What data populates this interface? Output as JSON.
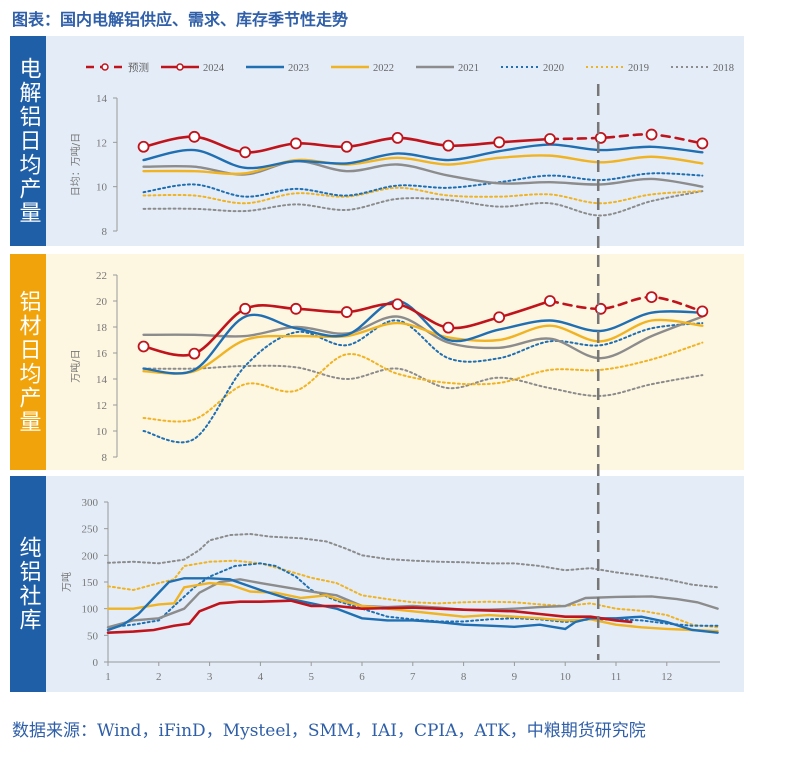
{
  "title": "图表：国内电解铝供应、需求、库存季节性走势",
  "footer": "数据来源：Wind，iFinD，Mysteel，SMM，IAI，CPIA，ATK，中粮期货研究院",
  "colors": {
    "red": "#c0141c",
    "blue": "#1f6fb2",
    "yellow": "#f0b323",
    "gray": "#8c8c8c",
    "panel_blue": "#e4edf7",
    "panel_cream": "#fdf6e1",
    "side_blue": "#1f5fa8",
    "side_orange": "#f0a30a"
  },
  "legend": [
    {
      "name": "预测",
      "color": "#c0141c",
      "style": "dashed-marker"
    },
    {
      "name": "2024",
      "color": "#c0141c",
      "style": "solid-marker"
    },
    {
      "name": "2023",
      "color": "#1f6fb2",
      "style": "solid"
    },
    {
      "name": "2022",
      "color": "#f0b323",
      "style": "solid"
    },
    {
      "name": "2021",
      "color": "#8c8c8c",
      "style": "solid"
    },
    {
      "name": "2020",
      "color": "#1f6fb2",
      "style": "dotted"
    },
    {
      "name": "2019",
      "color": "#f0b323",
      "style": "dotted"
    },
    {
      "name": "2018",
      "color": "#8c8c8c",
      "style": "dotted"
    }
  ],
  "forecast_divider_month": 10.65,
  "chart_data": [
    {
      "panel_label": "电解铝日均产量",
      "type": "line",
      "ylabel": "日均：万吨/日",
      "ylim": [
        8,
        14
      ],
      "yticks": [
        8,
        10,
        12,
        14
      ],
      "x": [
        1.7,
        2.7,
        3.7,
        4.7,
        5.7,
        6.7,
        7.7,
        8.7,
        9.7,
        10.7,
        11.7,
        12.7
      ],
      "series": [
        {
          "name": "2024",
          "values": [
            11.8,
            12.25,
            11.55,
            11.95,
            11.8,
            12.2,
            11.85,
            12.0,
            12.15,
            null,
            null,
            null
          ]
        },
        {
          "name": "预测",
          "values": [
            null,
            null,
            null,
            null,
            null,
            null,
            null,
            null,
            12.15,
            12.2,
            12.35,
            11.95
          ]
        },
        {
          "name": "2023",
          "values": [
            11.2,
            11.65,
            10.85,
            11.15,
            11.05,
            11.5,
            11.2,
            11.6,
            11.9,
            11.65,
            11.8,
            11.55
          ]
        },
        {
          "name": "2022",
          "values": [
            10.7,
            10.7,
            10.6,
            11.2,
            11.0,
            11.3,
            11.0,
            11.3,
            11.4,
            11.1,
            11.35,
            11.05
          ]
        },
        {
          "name": "2021",
          "values": [
            10.9,
            10.9,
            10.55,
            11.15,
            10.7,
            11.0,
            10.5,
            10.15,
            10.2,
            10.1,
            10.35,
            10.0
          ]
        },
        {
          "name": "2020",
          "values": [
            9.75,
            10.1,
            9.55,
            9.9,
            9.6,
            10.05,
            9.95,
            10.2,
            10.5,
            10.3,
            10.6,
            10.5
          ]
        },
        {
          "name": "2019",
          "values": [
            9.6,
            9.6,
            9.25,
            9.7,
            9.55,
            9.95,
            9.6,
            9.55,
            9.65,
            9.25,
            9.65,
            9.8
          ]
        },
        {
          "name": "2018",
          "values": [
            9.0,
            9.0,
            8.9,
            9.2,
            8.95,
            9.45,
            9.4,
            9.1,
            9.25,
            8.7,
            9.35,
            9.8
          ]
        }
      ]
    },
    {
      "panel_label": "铝材日均产量",
      "type": "line",
      "ylabel": "万吨/日",
      "ylim": [
        8,
        22
      ],
      "yticks": [
        8,
        10,
        12,
        14,
        16,
        18,
        20,
        22
      ],
      "x": [
        1.7,
        2.7,
        3.7,
        4.7,
        5.7,
        6.7,
        7.7,
        8.7,
        9.7,
        10.7,
        11.7,
        12.7
      ],
      "series": [
        {
          "name": "2024",
          "values": [
            16.5,
            15.95,
            19.4,
            19.4,
            19.15,
            19.75,
            17.95,
            18.75,
            20.0,
            null,
            null,
            null
          ]
        },
        {
          "name": "预测",
          "values": [
            null,
            null,
            null,
            null,
            null,
            null,
            null,
            null,
            20.0,
            19.4,
            20.3,
            19.2
          ]
        },
        {
          "name": "2023",
          "values": [
            14.8,
            14.7,
            18.8,
            17.9,
            17.4,
            20.0,
            17.0,
            17.8,
            18.5,
            17.7,
            19.1,
            19.1
          ]
        },
        {
          "name": "2022",
          "values": [
            14.6,
            14.6,
            17.0,
            17.3,
            17.3,
            18.3,
            17.2,
            17.0,
            18.1,
            16.9,
            18.5,
            18.1
          ]
        },
        {
          "name": "2021",
          "values": [
            17.4,
            17.4,
            17.3,
            18.0,
            17.5,
            18.8,
            16.8,
            16.4,
            17.1,
            15.6,
            17.3,
            18.8
          ]
        },
        {
          "name": "2020",
          "values": [
            10.0,
            9.4,
            15.0,
            17.6,
            16.6,
            18.5,
            15.6,
            15.6,
            16.9,
            16.6,
            17.9,
            18.3
          ]
        },
        {
          "name": "2019",
          "values": [
            11.0,
            10.9,
            13.6,
            13.1,
            15.9,
            14.4,
            13.7,
            13.7,
            14.7,
            14.7,
            15.5,
            16.8
          ]
        },
        {
          "name": "2018",
          "values": [
            14.8,
            14.8,
            15.0,
            14.9,
            14.0,
            14.8,
            13.3,
            14.1,
            13.3,
            12.7,
            13.6,
            14.3
          ]
        }
      ]
    },
    {
      "panel_label": "纯铝社库",
      "type": "line",
      "ylabel": "万吨",
      "ylim": [
        0,
        300
      ],
      "yticks": [
        0,
        50,
        100,
        150,
        200,
        250,
        300
      ],
      "xlim": [
        1,
        13
      ],
      "xticks": [
        1,
        2,
        3,
        4,
        5,
        6,
        7,
        8,
        9,
        10,
        11,
        12
      ],
      "series": [
        {
          "name": "2024",
          "points": [
            [
              1,
              55
            ],
            [
              1.5,
              57
            ],
            [
              1.9,
              60
            ],
            [
              2.3,
              68
            ],
            [
              2.6,
              72
            ],
            [
              2.8,
              95
            ],
            [
              3.2,
              110
            ],
            [
              3.6,
              113
            ],
            [
              4,
              113
            ],
            [
              4.6,
              115
            ],
            [
              5,
              105
            ],
            [
              5.5,
              105
            ],
            [
              6,
              100
            ],
            [
              7,
              102
            ],
            [
              7.5,
              100
            ],
            [
              8,
              98
            ],
            [
              9,
              95
            ],
            [
              9.5,
              90
            ],
            [
              10,
              85
            ],
            [
              10.5,
              85
            ],
            [
              11,
              78
            ],
            [
              11.3,
              75
            ]
          ]
        },
        {
          "name": "2023",
          "points": [
            [
              1,
              60
            ],
            [
              1.3,
              70
            ],
            [
              1.6,
              90
            ],
            [
              1.9,
              120
            ],
            [
              2.2,
              150
            ],
            [
              2.5,
              157
            ],
            [
              3,
              157
            ],
            [
              3.4,
              155
            ],
            [
              4,
              135
            ],
            [
              4.5,
              120
            ],
            [
              5,
              110
            ],
            [
              5.5,
              100
            ],
            [
              6,
              82
            ],
            [
              6.5,
              78
            ],
            [
              7,
              78
            ],
            [
              7.5,
              75
            ],
            [
              8,
              70
            ],
            [
              8.5,
              68
            ],
            [
              9,
              66
            ],
            [
              9.5,
              70
            ],
            [
              10,
              62
            ],
            [
              10.2,
              75
            ],
            [
              10.5,
              82
            ],
            [
              11,
              82
            ],
            [
              11.5,
              85
            ],
            [
              12,
              75
            ],
            [
              12.5,
              60
            ],
            [
              13,
              55
            ]
          ]
        },
        {
          "name": "2022",
          "points": [
            [
              1,
              100
            ],
            [
              1.5,
              100
            ],
            [
              2,
              108
            ],
            [
              2.3,
              110
            ],
            [
              2.5,
              140
            ],
            [
              3,
              148
            ],
            [
              3.4,
              145
            ],
            [
              3.8,
              132
            ],
            [
              4.3,
              130
            ],
            [
              4.8,
              120
            ],
            [
              5.3,
              125
            ],
            [
              5.6,
              115
            ],
            [
              6,
              105
            ],
            [
              6.5,
              100
            ],
            [
              7,
              95
            ],
            [
              7.5,
              90
            ],
            [
              8,
              85
            ],
            [
              8.5,
              88
            ],
            [
              9,
              85
            ],
            [
              9.5,
              82
            ],
            [
              10,
              78
            ],
            [
              10.5,
              80
            ],
            [
              11,
              70
            ],
            [
              11.5,
              65
            ],
            [
              12,
              62
            ],
            [
              12.5,
              60
            ],
            [
              13,
              58
            ]
          ]
        },
        {
          "name": "2021",
          "points": [
            [
              1,
              65
            ],
            [
              1.5,
              78
            ],
            [
              2,
              82
            ],
            [
              2.5,
              100
            ],
            [
              2.8,
              130
            ],
            [
              3.2,
              150
            ],
            [
              3.6,
              155
            ],
            [
              4,
              148
            ],
            [
              4.5,
              140
            ],
            [
              5,
              132
            ],
            [
              5.5,
              125
            ],
            [
              6,
              105
            ],
            [
              6.5,
              103
            ],
            [
              7,
              105
            ],
            [
              7.5,
              102
            ],
            [
              8,
              98
            ],
            [
              8.5,
              98
            ],
            [
              9,
              100
            ],
            [
              9.5,
              103
            ],
            [
              10,
              105
            ],
            [
              10.4,
              120
            ],
            [
              11,
              122
            ],
            [
              11.7,
              123
            ],
            [
              12.2,
              118
            ],
            [
              12.6,
              112
            ],
            [
              13,
              100
            ]
          ]
        },
        {
          "name": "2020",
          "points": [
            [
              1,
              65
            ],
            [
              1.5,
              70
            ],
            [
              2,
              78
            ],
            [
              2.3,
              105
            ],
            [
              2.7,
              140
            ],
            [
              3,
              160
            ],
            [
              3.5,
              180
            ],
            [
              4,
              185
            ],
            [
              4.3,
              180
            ],
            [
              4.7,
              160
            ],
            [
              5,
              135
            ],
            [
              5.5,
              115
            ],
            [
              6,
              100
            ],
            [
              6.5,
              85
            ],
            [
              7,
              80
            ],
            [
              7.5,
              76
            ],
            [
              8,
              76
            ],
            [
              8.5,
              80
            ],
            [
              9,
              82
            ],
            [
              9.5,
              80
            ],
            [
              10,
              75
            ],
            [
              10.5,
              80
            ],
            [
              11,
              80
            ],
            [
              11.5,
              78
            ],
            [
              12,
              72
            ],
            [
              12.5,
              68
            ],
            [
              13,
              68
            ]
          ]
        },
        {
          "name": "2019",
          "points": [
            [
              1,
              142
            ],
            [
              1.5,
              135
            ],
            [
              2,
              148
            ],
            [
              2.3,
              155
            ],
            [
              2.5,
              180
            ],
            [
              3,
              188
            ],
            [
              3.5,
              190
            ],
            [
              4,
              185
            ],
            [
              4.5,
              172
            ],
            [
              5,
              158
            ],
            [
              5.5,
              148
            ],
            [
              6,
              125
            ],
            [
              6.5,
              118
            ],
            [
              7,
              112
            ],
            [
              7.5,
              110
            ],
            [
              8,
              112
            ],
            [
              8.5,
              113
            ],
            [
              9,
              112
            ],
            [
              9.5,
              108
            ],
            [
              10,
              105
            ],
            [
              10.5,
              110
            ],
            [
              11,
              100
            ],
            [
              11.5,
              96
            ],
            [
              12,
              88
            ],
            [
              12.5,
              70
            ],
            [
              13,
              65
            ]
          ]
        },
        {
          "name": "2018",
          "points": [
            [
              1,
              186
            ],
            [
              1.5,
              188
            ],
            [
              2,
              185
            ],
            [
              2.5,
              192
            ],
            [
              2.8,
              210
            ],
            [
              3,
              228
            ],
            [
              3.4,
              238
            ],
            [
              3.8,
              240
            ],
            [
              4.2,
              235
            ],
            [
              4.8,
              232
            ],
            [
              5.3,
              226
            ],
            [
              5.7,
              212
            ],
            [
              6,
              200
            ],
            [
              6.5,
              193
            ],
            [
              7,
              190
            ],
            [
              7.5,
              188
            ],
            [
              8,
              187
            ],
            [
              8.5,
              185
            ],
            [
              9,
              185
            ],
            [
              9.5,
              180
            ],
            [
              10,
              172
            ],
            [
              10.5,
              176
            ],
            [
              11,
              168
            ],
            [
              11.5,
              162
            ],
            [
              12,
              155
            ],
            [
              12.5,
              145
            ],
            [
              13,
              140
            ]
          ]
        }
      ]
    }
  ]
}
